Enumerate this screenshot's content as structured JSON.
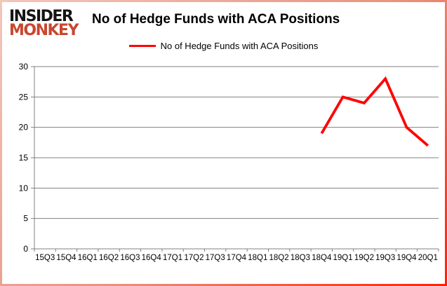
{
  "logo": {
    "line1": "INSIDER",
    "line2": "MONKEY"
  },
  "header": {
    "title": "No of Hedge Funds with ACA Positions"
  },
  "legend": {
    "label": "No of Hedge Funds with ACA Positions"
  },
  "colors": {
    "series_line": "#ff0000",
    "grid_line": "#808080",
    "axis_text": "#000000",
    "logo_primary": "#141414",
    "logo_accent": "#c8472f",
    "border_gradient_start": "#f3c6bb",
    "border_gradient_end": "#ff2104"
  },
  "chart_data": {
    "type": "line",
    "title": "No of Hedge Funds with ACA Positions",
    "categories": [
      "15Q3",
      "15Q4",
      "16Q1",
      "16Q2",
      "16Q3",
      "16Q4",
      "17Q1",
      "17Q2",
      "17Q3",
      "17Q4",
      "18Q1",
      "18Q2",
      "18Q3",
      "18Q4",
      "19Q1",
      "19Q2",
      "19Q3",
      "19Q4",
      "20Q1"
    ],
    "series": [
      {
        "name": "No of Hedge Funds with ACA Positions",
        "color": "#ff0000",
        "values": [
          null,
          null,
          null,
          null,
          null,
          null,
          null,
          null,
          null,
          null,
          null,
          null,
          null,
          19,
          25,
          24,
          28,
          20,
          17
        ]
      }
    ],
    "xlabel": "",
    "ylabel": "",
    "ylim": [
      0,
      30
    ],
    "yticks": [
      0,
      5,
      10,
      15,
      20,
      25,
      30
    ],
    "grid": true,
    "legend_position": "top"
  }
}
